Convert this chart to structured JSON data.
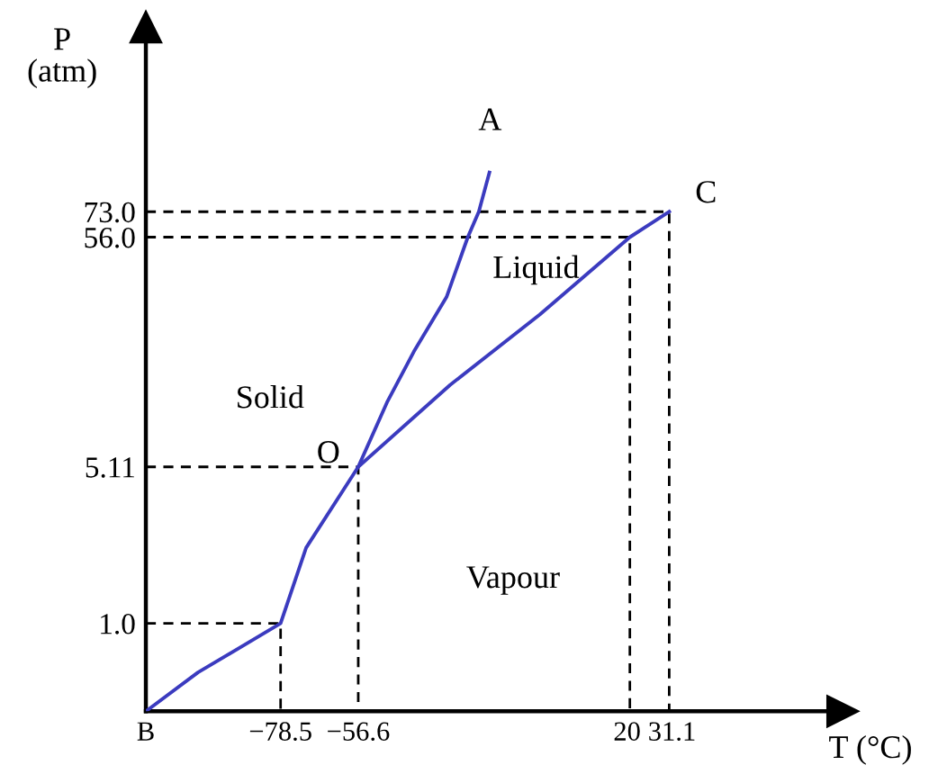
{
  "chart_data": {
    "type": "line",
    "xlabel": "T (°C)",
    "ylabel": "P\n(atm)",
    "xlim": [
      -116.5,
      80
    ],
    "ylim": [
      0.4,
      500
    ],
    "log": "y",
    "xticks": [
      {
        "value": -116.5,
        "label": "B"
      },
      {
        "value": -78.5,
        "label": "−78.5"
      },
      {
        "value": -56.6,
        "label": "−56.6"
      },
      20,
      31.1
    ],
    "yticks": [
      {
        "value": 1,
        "label": "1.0"
      },
      5.11,
      {
        "value": 56,
        "label": "56.0"
      },
      {
        "value": 73,
        "label": "73.0"
      }
    ],
    "series": [
      {
        "color": "#3b3bbf",
        "x": [
          -116.5,
          -101.8,
          -78.5,
          -71.3,
          -56.6,
          -48.5,
          -40.9,
          -31.7,
          -25.7,
          -22.6,
          -19.6
        ],
        "values": [
          0.4,
          0.6,
          1,
          2.2,
          5.11,
          10,
          17,
          30,
          56,
          73,
          110
        ]
      },
      {
        "color": "#3b3bbf",
        "x": [
          -56.6,
          -30.7,
          -5.4,
          20,
          31.1
        ],
        "values": [
          5.11,
          12,
          25,
          56,
          73
        ]
      },
      {
        "color": "#000000",
        "line_style": "dashed",
        "x": [
          -116.5,
          -78.5,
          -78.5
        ],
        "values": [
          1,
          1,
          0.4
        ]
      },
      {
        "color": "#000000",
        "line_style": "dashed",
        "x": [
          -116.5,
          -56.6,
          -56.6
        ],
        "values": [
          5.11,
          5.11,
          0.4
        ]
      },
      {
        "color": "#000000",
        "line_style": "dashed",
        "x": [
          -116.5,
          20,
          20
        ],
        "values": [
          56,
          56,
          0.4
        ]
      },
      {
        "color": "#000000",
        "line_style": "dashed",
        "x": [
          -116.5,
          31.1,
          31.1
        ],
        "values": [
          73,
          73,
          0.4
        ]
      }
    ],
    "annotations": [
      "A",
      "C",
      "O",
      "Solid",
      "Liquid",
      "Vapour"
    ],
    "grid": false,
    "marker": "none",
    "line_style": "solid"
  }
}
